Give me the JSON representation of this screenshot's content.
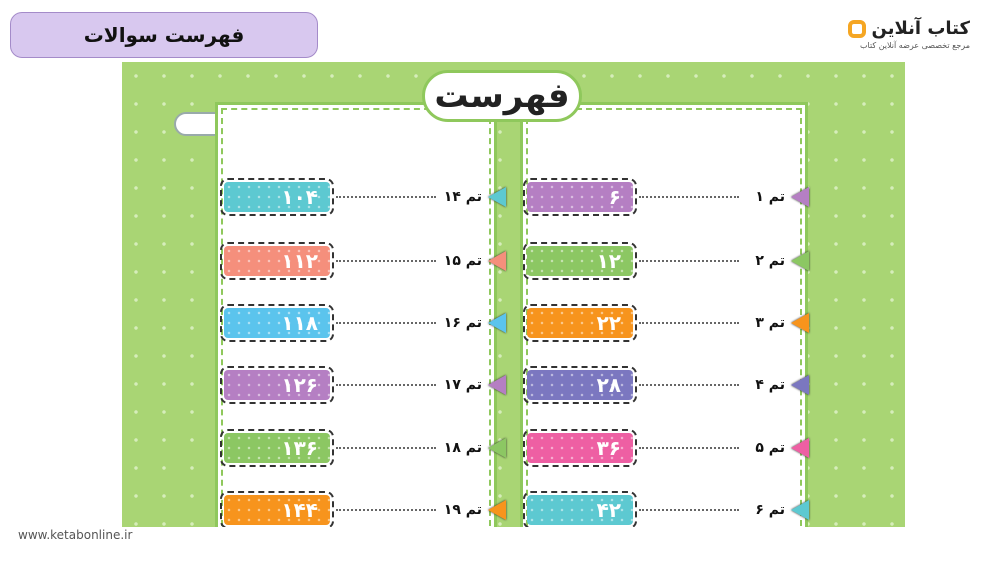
{
  "header": {
    "title": "فهرست سوالات"
  },
  "logo": {
    "name": "کتاب آنلاین",
    "tagline": "مرجع تخصصی عرضه آنلاین کتاب"
  },
  "panel": {
    "title": "فهرست"
  },
  "right_items": [
    {
      "label": "تم ۱",
      "page": "۶",
      "color": "#b57fc3"
    },
    {
      "label": "تم ۲",
      "page": "۱۲",
      "color": "#8cc763"
    },
    {
      "label": "تم ۳",
      "page": "۲۲",
      "color": "#f7941d"
    },
    {
      "label": "تم ۴",
      "page": "۲۸",
      "color": "#7b77c0"
    },
    {
      "label": "تم ۵",
      "page": "۳۶",
      "color": "#ee5fa3"
    },
    {
      "label": "تم ۶",
      "page": "۴۲",
      "color": "#5dc9d1"
    }
  ],
  "left_items": [
    {
      "label": "تم ۱۴",
      "page": "۱۰۴",
      "color": "#5dc9d1"
    },
    {
      "label": "تم ۱۵",
      "page": "۱۱۲",
      "color": "#f58f7c"
    },
    {
      "label": "تم ۱۶",
      "page": "۱۱۸",
      "color": "#5bc4ed"
    },
    {
      "label": "تم ۱۷",
      "page": "۱۲۶",
      "color": "#b57fc3"
    },
    {
      "label": "تم ۱۸",
      "page": "۱۳۶",
      "color": "#8cc763"
    },
    {
      "label": "تم ۱۹",
      "page": "۱۴۴",
      "color": "#f7941d"
    }
  ],
  "footer": {
    "url": "www.ketabonline.ir"
  }
}
